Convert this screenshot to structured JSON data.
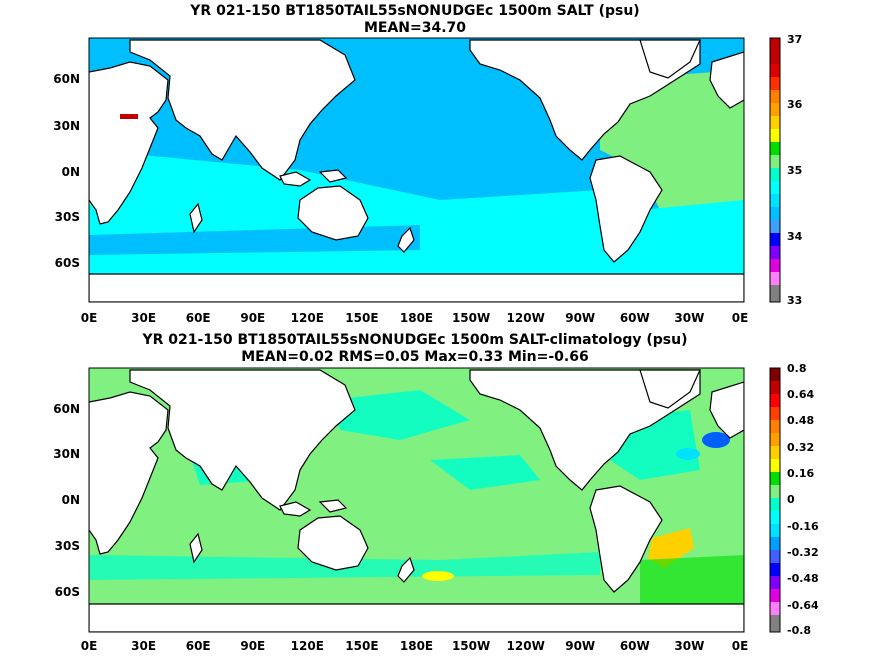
{
  "panel_top": {
    "title_line1": "YR 021-150 BT1850TAIL55sNONUDGEc 1500m SALT (psu)",
    "title_line2": "MEAN=34.70",
    "colorbar": [
      "37",
      "36",
      "35",
      "34",
      "33"
    ]
  },
  "panel_bottom": {
    "title_line1": "YR 021-150 BT1850TAIL55sNONUDGEc 1500m SALT-climatology (psu)",
    "title_line2": "MEAN=0.02   RMS=0.05   Max=0.33   Min=-0.66",
    "colorbar": [
      "0.8",
      "0.64",
      "0.48",
      "0.32",
      "0.16",
      "0",
      "-0.16",
      "-0.32",
      "-0.48",
      "-0.64",
      "-0.8"
    ]
  },
  "axes": {
    "x_ticks": [
      "0E",
      "30E",
      "60E",
      "90E",
      "120E",
      "150E",
      "180E",
      "150W",
      "120W",
      "90W",
      "60W",
      "30W",
      "0E"
    ],
    "y_ticks": [
      "60N",
      "30N",
      "0N",
      "30S",
      "60S"
    ]
  },
  "colors": {
    "ocean_top": "#00bfff",
    "ocean_top_light": "#00ffff",
    "atlantic_top": "#7ff07f",
    "ocean_bottom": "#80f080",
    "anom_cyan": "#00ffcc",
    "land": "#ffffff",
    "coast": "#000000"
  }
}
